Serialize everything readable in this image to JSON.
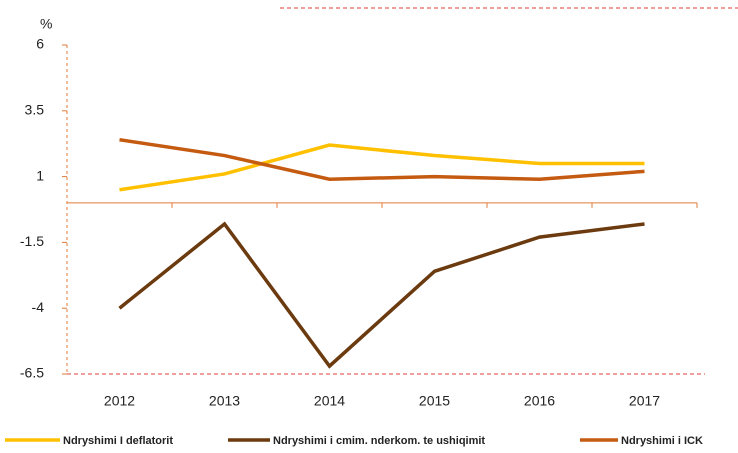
{
  "chart_data": {
    "type": "line",
    "y_label": "%",
    "categories": [
      "2012",
      "2013",
      "2014",
      "2015",
      "2016",
      "2017"
    ],
    "series": [
      {
        "name": "Ndryshimi I deflatorit",
        "color": "#ffc000",
        "values": [
          0.5,
          1.1,
          2.2,
          1.8,
          1.5,
          1.5
        ]
      },
      {
        "name": "Ndryshimi i cmim. nderkom. te ushiqimit",
        "color": "#6b3a0f",
        "values": [
          -4.0,
          -0.8,
          -6.2,
          -2.6,
          -1.3,
          -0.8
        ]
      },
      {
        "name": "Ndryshimi i ICK",
        "color": "#c55a11",
        "values": [
          2.4,
          1.8,
          0.9,
          1.0,
          0.9,
          1.2
        ]
      }
    ],
    "ylim": [
      -6.5,
      6
    ],
    "yticks": [
      -6.5,
      -4,
      -1.5,
      1,
      3.5,
      6
    ],
    "legend": "bottom"
  }
}
